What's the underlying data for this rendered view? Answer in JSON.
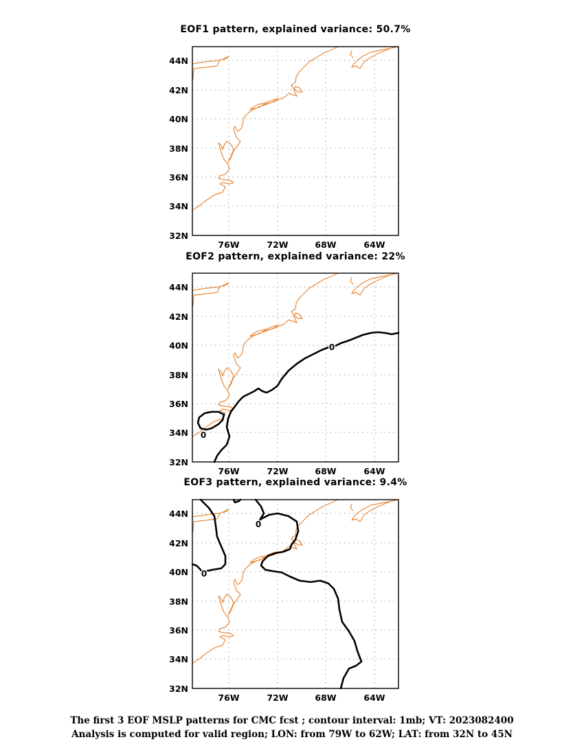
{
  "panels": [
    {
      "title": "EOF1 pattern, explained variance: 50.7%",
      "contour_label": "",
      "contour_label2": ""
    },
    {
      "title": "EOF2 pattern, explained variance: 22%",
      "contour_label": "0",
      "contour_label2": "0"
    },
    {
      "title": "EOF3 pattern, explained variance: 9.4%",
      "contour_label": "0",
      "contour_label2": "0"
    }
  ],
  "axes": {
    "lat_ticks": [
      "44N",
      "42N",
      "40N",
      "38N",
      "36N",
      "34N",
      "32N"
    ],
    "lon_ticks": [
      "76W",
      "72W",
      "68W",
      "64W"
    ]
  },
  "footer": {
    "line1": "The first 3 EOF MSLP patterns for CMC fcst ; contour interval: 1mb; VT: 2023082400",
    "line2": "Analysis is computed for valid region; LON: from 79W to 62W; LAT: from 32N to 45N"
  },
  "colors": {
    "coastline": "#e8893a",
    "contour": "#000000",
    "grid": "#9a9a9a"
  }
}
